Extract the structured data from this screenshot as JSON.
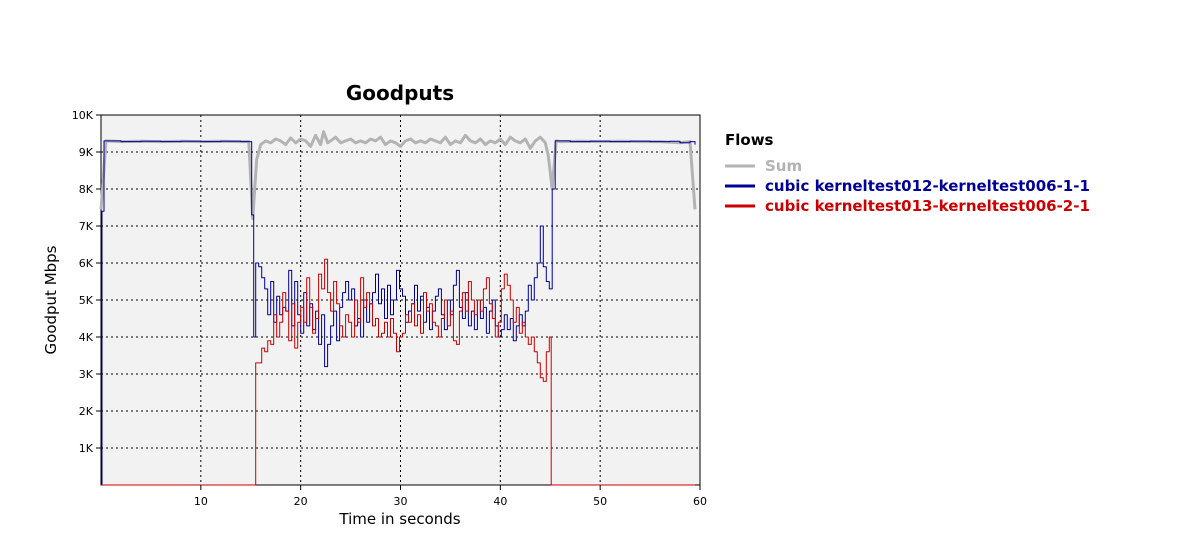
{
  "chart_data": {
    "type": "line",
    "title": "Goodputs",
    "xlabel": "Time in seconds",
    "ylabel": "Goodput Mbps",
    "xlim": [
      0,
      60
    ],
    "ylim": [
      0,
      10000
    ],
    "x_ticks": [
      10,
      20,
      30,
      40,
      50,
      60
    ],
    "y_ticks": [
      {
        "value": 1000,
        "label": "1K"
      },
      {
        "value": 2000,
        "label": "2K"
      },
      {
        "value": 3000,
        "label": "3K"
      },
      {
        "value": 4000,
        "label": "4K"
      },
      {
        "value": 5000,
        "label": "5K"
      },
      {
        "value": 6000,
        "label": "6K"
      },
      {
        "value": 7000,
        "label": "7K"
      },
      {
        "value": 8000,
        "label": "8K"
      },
      {
        "value": 9000,
        "label": "9K"
      },
      {
        "value": 10000,
        "label": "10K"
      }
    ],
    "grid": true,
    "legend": {
      "title": "Flows",
      "placement": "right"
    },
    "series": [
      {
        "name": "Sum",
        "color": "#b3b3b3",
        "step": false,
        "points": [
          [
            0,
            7450
          ],
          [
            0.5,
            9300
          ],
          [
            2,
            9280
          ],
          [
            4,
            9290
          ],
          [
            6,
            9280
          ],
          [
            8,
            9290
          ],
          [
            10,
            9280
          ],
          [
            12,
            9290
          ],
          [
            14,
            9280
          ],
          [
            14.8,
            9280
          ],
          [
            15.2,
            7200
          ],
          [
            15.6,
            8800
          ],
          [
            16,
            9200
          ],
          [
            16.5,
            9300
          ],
          [
            17,
            9250
          ],
          [
            17.5,
            9350
          ],
          [
            18,
            9300
          ],
          [
            18.5,
            9200
          ],
          [
            19,
            9380
          ],
          [
            19.5,
            9250
          ],
          [
            20,
            9350
          ],
          [
            20.5,
            9300
          ],
          [
            21,
            9150
          ],
          [
            21.5,
            9450
          ],
          [
            22,
            9200
          ],
          [
            22.3,
            9550
          ],
          [
            22.7,
            9250
          ],
          [
            23,
            9300
          ],
          [
            23.5,
            9400
          ],
          [
            24,
            9250
          ],
          [
            24.5,
            9300
          ],
          [
            25,
            9350
          ],
          [
            25.5,
            9250
          ],
          [
            26,
            9300
          ],
          [
            26.5,
            9250
          ],
          [
            27,
            9350
          ],
          [
            27.5,
            9300
          ],
          [
            28,
            9400
          ],
          [
            28.5,
            9200
          ],
          [
            29,
            9300
          ],
          [
            29.5,
            9250
          ],
          [
            30,
            9150
          ],
          [
            30.5,
            9300
          ],
          [
            31,
            9350
          ],
          [
            31.5,
            9250
          ],
          [
            32,
            9300
          ],
          [
            32.5,
            9250
          ],
          [
            33,
            9350
          ],
          [
            33.5,
            9300
          ],
          [
            34,
            9250
          ],
          [
            34.5,
            9400
          ],
          [
            35,
            9200
          ],
          [
            35.5,
            9300
          ],
          [
            36,
            9250
          ],
          [
            36.5,
            9450
          ],
          [
            37,
            9300
          ],
          [
            37.5,
            9250
          ],
          [
            38,
            9350
          ],
          [
            38.5,
            9200
          ],
          [
            39,
            9300
          ],
          [
            39.5,
            9250
          ],
          [
            40,
            9350
          ],
          [
            40.5,
            9200
          ],
          [
            41,
            9400
          ],
          [
            41.5,
            9300
          ],
          [
            42,
            9250
          ],
          [
            42.5,
            9350
          ],
          [
            43,
            9100
          ],
          [
            43.5,
            9300
          ],
          [
            44,
            9400
          ],
          [
            44.5,
            9250
          ],
          [
            44.8,
            8900
          ],
          [
            45.2,
            8000
          ],
          [
            45.6,
            9300
          ],
          [
            46,
            9280
          ],
          [
            48,
            9290
          ],
          [
            50,
            9280
          ],
          [
            52,
            9290
          ],
          [
            54,
            9280
          ],
          [
            56,
            9280
          ],
          [
            58,
            9250
          ],
          [
            59,
            9280
          ],
          [
            59.5,
            7450
          ]
        ]
      },
      {
        "name": "cubic kerneltest012-kerneltest006-1-1",
        "color": "#000099",
        "step": true,
        "points": [
          [
            0,
            0
          ],
          [
            0.1,
            7400
          ],
          [
            0.3,
            9300
          ],
          [
            2,
            9280
          ],
          [
            4,
            9290
          ],
          [
            6,
            9280
          ],
          [
            8,
            9290
          ],
          [
            10,
            9280
          ],
          [
            12,
            9290
          ],
          [
            14,
            9280
          ],
          [
            15,
            9280
          ],
          [
            15.1,
            7300
          ],
          [
            15.3,
            4000
          ],
          [
            15.5,
            6000
          ],
          [
            15.8,
            5900
          ],
          [
            16.1,
            5600
          ],
          [
            16.4,
            5300
          ],
          [
            16.7,
            4600
          ],
          [
            17,
            5500
          ],
          [
            17.3,
            4400
          ],
          [
            17.6,
            5100
          ],
          [
            17.9,
            4600
          ],
          [
            18.2,
            4800
          ],
          [
            18.5,
            4700
          ],
          [
            18.8,
            5800
          ],
          [
            19.1,
            4300
          ],
          [
            19.4,
            5500
          ],
          [
            19.7,
            4600
          ],
          [
            20,
            4100
          ],
          [
            20.3,
            5200
          ],
          [
            20.6,
            4300
          ],
          [
            20.9,
            4900
          ],
          [
            21.2,
            4200
          ],
          [
            21.5,
            4700
          ],
          [
            21.8,
            3800
          ],
          [
            22.1,
            4600
          ],
          [
            22.4,
            3200
          ],
          [
            22.7,
            3800
          ],
          [
            23,
            4300
          ],
          [
            23.3,
            4700
          ],
          [
            23.6,
            3900
          ],
          [
            23.9,
            4800
          ],
          [
            24.2,
            5200
          ],
          [
            24.5,
            5500
          ],
          [
            24.8,
            5000
          ],
          [
            25.1,
            5300
          ],
          [
            25.4,
            4300
          ],
          [
            25.7,
            4500
          ],
          [
            26,
            4000
          ],
          [
            26.3,
            5000
          ],
          [
            26.6,
            4400
          ],
          [
            26.9,
            4900
          ],
          [
            27.2,
            5200
          ],
          [
            27.5,
            5700
          ],
          [
            27.8,
            4900
          ],
          [
            28.1,
            5300
          ],
          [
            28.4,
            4500
          ],
          [
            28.7,
            5400
          ],
          [
            29,
            4600
          ],
          [
            29.3,
            5000
          ],
          [
            29.6,
            5800
          ],
          [
            29.9,
            5300
          ],
          [
            30.2,
            5100
          ],
          [
            30.5,
            4400
          ],
          [
            30.8,
            4700
          ],
          [
            31.1,
            4900
          ],
          [
            31.4,
            5400
          ],
          [
            31.7,
            4700
          ],
          [
            32,
            5100
          ],
          [
            32.3,
            4400
          ],
          [
            32.6,
            4800
          ],
          [
            32.9,
            4200
          ],
          [
            33.2,
            4700
          ],
          [
            33.5,
            5100
          ],
          [
            33.8,
            5300
          ],
          [
            34.1,
            4600
          ],
          [
            34.4,
            4200
          ],
          [
            34.7,
            5000
          ],
          [
            35,
            4600
          ],
          [
            35.3,
            5400
          ],
          [
            35.6,
            5800
          ],
          [
            35.9,
            4800
          ],
          [
            36.2,
            4500
          ],
          [
            36.5,
            5200
          ],
          [
            36.8,
            4300
          ],
          [
            37.1,
            4700
          ],
          [
            37.4,
            4200
          ],
          [
            37.7,
            5000
          ],
          [
            38,
            4500
          ],
          [
            38.3,
            4800
          ],
          [
            38.6,
            4100
          ],
          [
            38.9,
            4700
          ],
          [
            39.2,
            5000
          ],
          [
            39.5,
            4300
          ],
          [
            39.8,
            4000
          ],
          [
            40.1,
            4200
          ],
          [
            40.4,
            4600
          ],
          [
            40.7,
            4200
          ],
          [
            41,
            4500
          ],
          [
            41.3,
            3900
          ],
          [
            41.6,
            4300
          ],
          [
            41.9,
            4600
          ],
          [
            42.2,
            4300
          ],
          [
            42.5,
            4700
          ],
          [
            42.8,
            5400
          ],
          [
            43.1,
            5000
          ],
          [
            43.4,
            5600
          ],
          [
            43.7,
            6000
          ],
          [
            44,
            7000
          ],
          [
            44.3,
            5900
          ],
          [
            44.6,
            5500
          ],
          [
            44.9,
            5300
          ],
          [
            45.2,
            8000
          ],
          [
            45.5,
            9300
          ],
          [
            47,
            9280
          ],
          [
            49,
            9290
          ],
          [
            51,
            9280
          ],
          [
            53,
            9290
          ],
          [
            55,
            9280
          ],
          [
            57,
            9290
          ],
          [
            58,
            9250
          ],
          [
            59,
            9280
          ],
          [
            59.5,
            9200
          ]
        ]
      },
      {
        "name": "cubic kerneltest013-kerneltest006-2-1",
        "color": "#cc0000",
        "step": true,
        "points": [
          [
            0,
            0
          ],
          [
            15.4,
            0
          ],
          [
            15.5,
            3300
          ],
          [
            15.8,
            3300
          ],
          [
            16.1,
            3700
          ],
          [
            16.4,
            3600
          ],
          [
            16.7,
            3900
          ],
          [
            17,
            3800
          ],
          [
            17.3,
            4600
          ],
          [
            17.6,
            4000
          ],
          [
            17.9,
            4400
          ],
          [
            18.2,
            5200
          ],
          [
            18.5,
            4700
          ],
          [
            18.8,
            3900
          ],
          [
            19.1,
            4900
          ],
          [
            19.4,
            3700
          ],
          [
            19.7,
            4400
          ],
          [
            20,
            4800
          ],
          [
            20.3,
            4400
          ],
          [
            20.6,
            5600
          ],
          [
            20.9,
            4800
          ],
          [
            21.2,
            4100
          ],
          [
            21.5,
            4500
          ],
          [
            21.8,
            5700
          ],
          [
            22.1,
            5300
          ],
          [
            22.4,
            6100
          ],
          [
            22.7,
            5200
          ],
          [
            23,
            4700
          ],
          [
            23.3,
            5500
          ],
          [
            23.6,
            4900
          ],
          [
            23.9,
            4300
          ],
          [
            24.2,
            4000
          ],
          [
            24.5,
            4600
          ],
          [
            24.8,
            4400
          ],
          [
            25.1,
            4000
          ],
          [
            25.4,
            5000
          ],
          [
            25.7,
            4400
          ],
          [
            26,
            5600
          ],
          [
            26.3,
            4800
          ],
          [
            26.6,
            5200
          ],
          [
            26.9,
            4900
          ],
          [
            27.2,
            4300
          ],
          [
            27.5,
            4500
          ],
          [
            27.8,
            4000
          ],
          [
            28.1,
            4100
          ],
          [
            28.4,
            4400
          ],
          [
            28.7,
            4000
          ],
          [
            29,
            4500
          ],
          [
            29.3,
            4100
          ],
          [
            29.6,
            3600
          ],
          [
            29.9,
            4000
          ],
          [
            30.2,
            4100
          ],
          [
            30.5,
            4600
          ],
          [
            30.8,
            4400
          ],
          [
            31.1,
            4900
          ],
          [
            31.4,
            4300
          ],
          [
            31.7,
            4600
          ],
          [
            32,
            4100
          ],
          [
            32.3,
            5200
          ],
          [
            32.6,
            4700
          ],
          [
            32.9,
            4900
          ],
          [
            33.2,
            4400
          ],
          [
            33.5,
            4300
          ],
          [
            33.8,
            4000
          ],
          [
            34.1,
            4500
          ],
          [
            34.4,
            5000
          ],
          [
            34.7,
            4300
          ],
          [
            35,
            4700
          ],
          [
            35.3,
            3900
          ],
          [
            35.6,
            3800
          ],
          [
            35.9,
            4700
          ],
          [
            36.2,
            5200
          ],
          [
            36.5,
            4700
          ],
          [
            36.8,
            5500
          ],
          [
            37.1,
            5000
          ],
          [
            37.4,
            4600
          ],
          [
            37.7,
            5000
          ],
          [
            38,
            4700
          ],
          [
            38.3,
            5300
          ],
          [
            38.6,
            5600
          ],
          [
            38.9,
            4900
          ],
          [
            39.2,
            4500
          ],
          [
            39.5,
            4000
          ],
          [
            39.8,
            4400
          ],
          [
            40.1,
            5300
          ],
          [
            40.4,
            5700
          ],
          [
            40.7,
            5400
          ],
          [
            41,
            5000
          ],
          [
            41.3,
            4400
          ],
          [
            41.6,
            4800
          ],
          [
            41.9,
            4100
          ],
          [
            42.2,
            4400
          ],
          [
            42.5,
            4000
          ],
          [
            42.8,
            3800
          ],
          [
            43.1,
            4000
          ],
          [
            43.4,
            3600
          ],
          [
            43.7,
            3300
          ],
          [
            44,
            2900
          ],
          [
            44.3,
            2800
          ],
          [
            44.6,
            3600
          ],
          [
            44.9,
            4000
          ],
          [
            45.1,
            0
          ],
          [
            59.5,
            0
          ]
        ]
      }
    ]
  }
}
